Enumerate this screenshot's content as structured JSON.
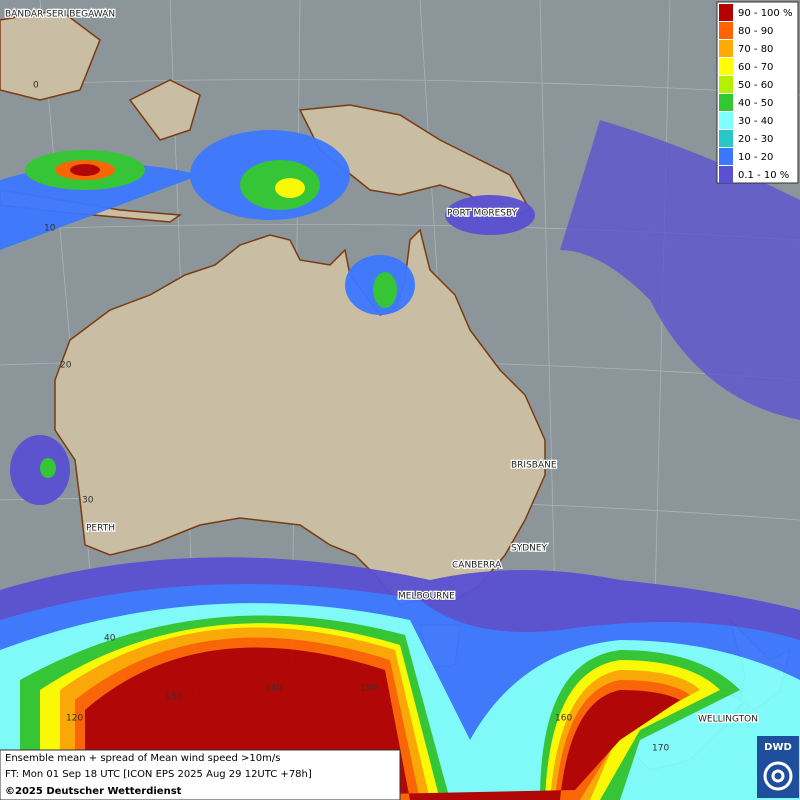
{
  "legend": [
    {
      "label": "90 - 100 %",
      "color": "#b40000"
    },
    {
      "label": "80 - 90",
      "color": "#ff6400"
    },
    {
      "label": "70 - 80",
      "color": "#ffaa00"
    },
    {
      "label": "60 - 70",
      "color": "#ffff00"
    },
    {
      "label": "50 - 60",
      "color": "#b4f000"
    },
    {
      "label": "40 - 50",
      "color": "#32c832"
    },
    {
      "label": "30 - 40",
      "color": "#80ffff"
    },
    {
      "label": "20 - 30",
      "color": "#28c8c8"
    },
    {
      "label": "10 - 20",
      "color": "#3c78ff"
    },
    {
      "label": "0.1 - 10 %",
      "color": "#5a50d2"
    }
  ],
  "places": {
    "bandar_seri_begawan": "BANDAR SERI BEGAWAN",
    "port_moresby": "PORT MORESBY",
    "brisbane": "BRISBANE",
    "sydney": "SYDNEY",
    "canberra": "CANBERRA",
    "melbourne": "MELBOURNE",
    "perth": "PERTH",
    "wellington": "WELLINGTON"
  },
  "grid_labels": {
    "lat0": "0",
    "lat10": "10",
    "lat20": "20",
    "lat30": "30",
    "lat40": "40",
    "lon120": "120",
    "lon130": "130",
    "lon140": "140",
    "lon150": "150",
    "lon160": "160",
    "lon170": "170"
  },
  "footer": {
    "line1": "Ensemble mean + spread of Mean wind speed >10m/s",
    "line2": "FT: Mon 01 Sep 18 UTC [ICON EPS 2025 Aug 29 12UTC +78h]",
    "copyright": "©2025 Deutscher Wetterdienst"
  },
  "logo": "DWD"
}
